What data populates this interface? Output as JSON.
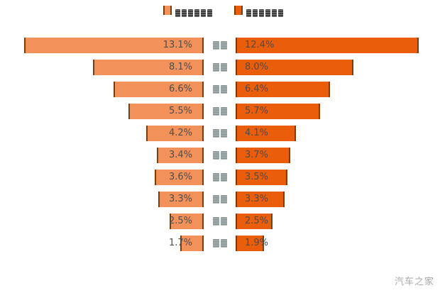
{
  "glyph_note": "CJK text in the source screenshot is rendered as missing-glyph (tofu) boxes; unreadable characters are encoded as □ below",
  "legend": {
    "items": [
      {
        "label": "□□□□□□",
        "swatch_color": "#F2915A",
        "swatch_edge": "#7A3E0E"
      },
      {
        "label": "□□□□□□",
        "swatch_color": "#EA5D0B",
        "swatch_edge": "#7A3E0E"
      }
    ]
  },
  "chart_data": {
    "type": "bar",
    "layout": "tornado-bidirectional",
    "grid": false,
    "legend_position": "top-center",
    "categories": [
      "□□",
      "□□",
      "□□",
      "□□",
      "□□",
      "□□",
      "□□",
      "□□",
      "□□",
      "□□"
    ],
    "series": [
      {
        "name": "□□□□□□",
        "side": "left",
        "color": "#F2915A",
        "values": [
          13.1,
          8.1,
          6.6,
          5.5,
          4.2,
          3.4,
          3.6,
          3.3,
          2.5,
          1.7
        ],
        "labels": [
          "13.1%",
          "8.1%",
          "6.6%",
          "5.5%",
          "4.2%",
          "3.4%",
          "3.6%",
          "3.3%",
          "2.5%",
          "1.7%"
        ]
      },
      {
        "name": "□□□□□□",
        "side": "right",
        "color": "#EA5D0B",
        "values": [
          12.4,
          8.0,
          6.4,
          5.7,
          4.1,
          3.7,
          3.5,
          3.3,
          2.5,
          1.9
        ],
        "labels": [
          "12.4%",
          "8.0%",
          "6.4%",
          "5.7%",
          "4.1%",
          "3.7%",
          "3.5%",
          "3.3%",
          "2.5%",
          "1.9%"
        ]
      }
    ],
    "value_axis_hidden": true,
    "xlim_left_pct": [
      0,
      13.1
    ],
    "xlim_right_pct": [
      0,
      12.4
    ]
  },
  "colors": {
    "background": "#FFFFFF",
    "bar_left_fill": "#F2915A",
    "bar_right_fill": "#EA5D0B",
    "bar_edge": "#7A3E0E",
    "value_text": "#4D4D4D",
    "category_text": "#8C9999",
    "watermark_text": "#A8A8A8"
  },
  "watermark": "汽车之家"
}
